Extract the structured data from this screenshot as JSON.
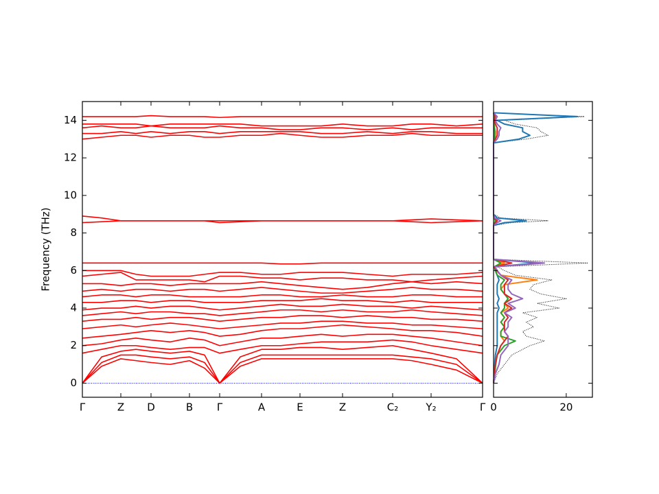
{
  "chart_data": [
    {
      "type": "line",
      "y_label": "Frequency (THz)",
      "x": [
        0,
        0.28,
        0.56,
        0.78,
        1.0,
        1.28,
        1.56,
        1.78,
        2.0,
        2.3,
        2.61,
        2.89,
        3.17,
        3.48,
        3.79,
        4.15,
        4.52,
        4.8,
        5.08,
        5.45,
        5.83
      ],
      "xlim": [
        0,
        5.83
      ],
      "xticks": [
        {
          "value": 0,
          "label": "Γ"
        },
        {
          "value": 0.56,
          "label": "Z"
        },
        {
          "value": 1.0,
          "label": "D"
        },
        {
          "value": 1.56,
          "label": "B"
        },
        {
          "value": 2.0,
          "label": "Γ"
        },
        {
          "value": 2.61,
          "label": "A"
        },
        {
          "value": 3.17,
          "label": "E"
        },
        {
          "value": 3.79,
          "label": "Z"
        },
        {
          "value": 4.52,
          "label": "C₂"
        },
        {
          "value": 5.08,
          "label": "Y₂"
        },
        {
          "value": 5.83,
          "label": "Γ"
        }
      ],
      "ylim": [
        -0.75,
        15
      ],
      "yticks": [
        0,
        2,
        4,
        6,
        8,
        10,
        12,
        14
      ],
      "series": [
        {
          "color": "#0000ff",
          "linestyle": "dotted",
          "values": [
            0,
            0,
            0,
            0,
            0,
            0,
            0,
            0,
            0,
            0,
            0,
            0,
            0,
            0,
            0,
            0,
            0,
            0,
            0,
            0,
            0
          ]
        },
        {
          "color": "#ff0000",
          "values": [
            0,
            0.9,
            1.3,
            1.2,
            1.1,
            1.0,
            1.2,
            0.8,
            0,
            0.9,
            1.3,
            1.3,
            1.3,
            1.3,
            1.3,
            1.3,
            1.3,
            1.2,
            1.0,
            0.7,
            0
          ]
        },
        {
          "color": "#ff0000",
          "values": [
            0,
            1.1,
            1.5,
            1.5,
            1.4,
            1.3,
            1.4,
            1.1,
            0,
            1.1,
            1.5,
            1.5,
            1.5,
            1.5,
            1.5,
            1.5,
            1.5,
            1.4,
            1.3,
            1.0,
            0
          ]
        },
        {
          "color": "#ff0000",
          "values": [
            0,
            1.4,
            1.7,
            1.8,
            1.7,
            1.6,
            1.7,
            1.5,
            0,
            1.4,
            1.8,
            1.8,
            1.9,
            1.9,
            1.8,
            1.9,
            2.0,
            1.8,
            1.6,
            1.3,
            0
          ]
        },
        {
          "color": "#ff0000",
          "values": [
            1.6,
            1.8,
            2.0,
            2.0,
            1.9,
            1.8,
            1.9,
            1.9,
            1.6,
            1.8,
            2.0,
            2.0,
            2.1,
            2.2,
            2.2,
            2.2,
            2.3,
            2.2,
            2.0,
            1.8,
            1.6
          ]
        },
        {
          "color": "#ff0000",
          "values": [
            2.0,
            2.1,
            2.3,
            2.4,
            2.3,
            2.2,
            2.4,
            2.3,
            2.0,
            2.2,
            2.4,
            2.4,
            2.5,
            2.6,
            2.5,
            2.6,
            2.6,
            2.5,
            2.4,
            2.2,
            2.0
          ]
        },
        {
          "color": "#ff0000",
          "values": [
            2.4,
            2.5,
            2.6,
            2.7,
            2.8,
            2.7,
            2.8,
            2.7,
            2.5,
            2.6,
            2.8,
            2.9,
            2.9,
            3.0,
            3.1,
            3.0,
            2.9,
            2.8,
            2.8,
            2.7,
            2.5
          ]
        },
        {
          "color": "#ff0000",
          "values": [
            2.9,
            3.0,
            3.1,
            3.0,
            3.1,
            3.2,
            3.1,
            3.0,
            2.9,
            3.0,
            3.1,
            3.2,
            3.2,
            3.3,
            3.3,
            3.2,
            3.2,
            3.1,
            3.1,
            3.0,
            2.9
          ]
        },
        {
          "color": "#ff0000",
          "values": [
            3.3,
            3.4,
            3.4,
            3.5,
            3.4,
            3.5,
            3.5,
            3.4,
            3.3,
            3.4,
            3.5,
            3.5,
            3.6,
            3.6,
            3.5,
            3.6,
            3.5,
            3.5,
            3.4,
            3.4,
            3.3
          ]
        },
        {
          "color": "#ff0000",
          "values": [
            3.6,
            3.7,
            3.8,
            3.7,
            3.8,
            3.8,
            3.7,
            3.7,
            3.6,
            3.7,
            3.8,
            3.9,
            3.9,
            3.8,
            3.9,
            3.8,
            3.8,
            3.9,
            3.8,
            3.7,
            3.6
          ]
        },
        {
          "color": "#ff0000",
          "values": [
            3.9,
            4.0,
            4.0,
            4.1,
            4.0,
            4.1,
            4.1,
            4.0,
            3.9,
            4.0,
            4.1,
            4.2,
            4.1,
            4.1,
            4.2,
            4.1,
            4.1,
            4.0,
            4.1,
            4.0,
            3.9
          ]
        },
        {
          "color": "#ff0000",
          "values": [
            4.3,
            4.3,
            4.4,
            4.4,
            4.3,
            4.4,
            4.4,
            4.3,
            4.3,
            4.3,
            4.4,
            4.4,
            4.4,
            4.5,
            4.4,
            4.4,
            4.3,
            4.4,
            4.3,
            4.3,
            4.3
          ]
        },
        {
          "color": "#ff0000",
          "values": [
            4.6,
            4.7,
            4.7,
            4.6,
            4.7,
            4.7,
            4.6,
            4.6,
            4.6,
            4.6,
            4.7,
            4.7,
            4.6,
            4.6,
            4.7,
            4.6,
            4.6,
            4.7,
            4.7,
            4.6,
            4.6
          ]
        },
        {
          "color": "#ff0000",
          "values": [
            4.9,
            5.0,
            4.9,
            5.0,
            5.0,
            4.9,
            5.0,
            5.0,
            4.9,
            5.0,
            5.1,
            5.0,
            4.9,
            4.8,
            4.8,
            4.9,
            5.0,
            5.1,
            5.0,
            5.0,
            4.9
          ]
        },
        {
          "color": "#ff0000",
          "values": [
            5.3,
            5.3,
            5.2,
            5.3,
            5.3,
            5.2,
            5.3,
            5.3,
            5.3,
            5.3,
            5.4,
            5.3,
            5.2,
            5.1,
            5.0,
            5.1,
            5.3,
            5.4,
            5.3,
            5.4,
            5.3
          ]
        },
        {
          "color": "#ff0000",
          "values": [
            5.7,
            5.8,
            5.9,
            5.5,
            5.5,
            5.5,
            5.5,
            5.4,
            5.7,
            5.7,
            5.6,
            5.6,
            5.5,
            5.6,
            5.6,
            5.5,
            5.5,
            5.4,
            5.5,
            5.6,
            5.7
          ]
        },
        {
          "color": "#ff0000",
          "values": [
            6.0,
            6.0,
            6.0,
            5.8,
            5.7,
            5.7,
            5.7,
            5.8,
            5.9,
            5.9,
            5.8,
            5.8,
            5.9,
            5.9,
            5.9,
            5.8,
            5.7,
            5.8,
            5.8,
            5.8,
            5.9
          ]
        },
        {
          "color": "#ff0000",
          "values": [
            6.4,
            6.4,
            6.4,
            6.4,
            6.4,
            6.4,
            6.4,
            6.4,
            6.4,
            6.4,
            6.4,
            6.35,
            6.35,
            6.4,
            6.4,
            6.4,
            6.4,
            6.4,
            6.4,
            6.4,
            6.4
          ]
        },
        {
          "color": "#ff0000",
          "values": [
            8.9,
            8.8,
            8.65,
            8.65,
            8.65,
            8.65,
            8.65,
            8.65,
            8.55,
            8.6,
            8.65,
            8.65,
            8.65,
            8.65,
            8.65,
            8.65,
            8.65,
            8.7,
            8.75,
            8.7,
            8.65
          ]
        },
        {
          "color": "#ff0000",
          "values": [
            8.55,
            8.6,
            8.65,
            8.65,
            8.65,
            8.65,
            8.65,
            8.65,
            8.65,
            8.65,
            8.65,
            8.65,
            8.65,
            8.65,
            8.65,
            8.65,
            8.65,
            8.6,
            8.55,
            8.6,
            8.65
          ]
        },
        {
          "color": "#ff0000",
          "values": [
            13.0,
            13.1,
            13.2,
            13.2,
            13.1,
            13.2,
            13.2,
            13.1,
            13.1,
            13.2,
            13.2,
            13.3,
            13.2,
            13.1,
            13.1,
            13.2,
            13.2,
            13.3,
            13.2,
            13.2,
            13.2
          ]
        },
        {
          "color": "#ff0000",
          "values": [
            13.3,
            13.3,
            13.4,
            13.3,
            13.4,
            13.3,
            13.4,
            13.4,
            13.3,
            13.4,
            13.4,
            13.4,
            13.4,
            13.3,
            13.3,
            13.4,
            13.3,
            13.4,
            13.4,
            13.3,
            13.3
          ]
        },
        {
          "color": "#ff0000",
          "values": [
            13.6,
            13.7,
            13.6,
            13.6,
            13.7,
            13.6,
            13.6,
            13.6,
            13.7,
            13.6,
            13.6,
            13.5,
            13.5,
            13.6,
            13.6,
            13.5,
            13.6,
            13.5,
            13.6,
            13.6,
            13.6
          ]
        },
        {
          "color": "#ff0000",
          "values": [
            13.8,
            13.8,
            13.8,
            13.8,
            13.7,
            13.8,
            13.8,
            13.8,
            13.8,
            13.8,
            13.7,
            13.7,
            13.7,
            13.7,
            13.8,
            13.7,
            13.7,
            13.8,
            13.8,
            13.7,
            13.8
          ]
        },
        {
          "color": "#ff0000",
          "values": [
            14.2,
            14.2,
            14.2,
            14.2,
            14.25,
            14.2,
            14.2,
            14.2,
            14.15,
            14.2,
            14.2,
            14.2,
            14.2,
            14.2,
            14.2,
            14.2,
            14.2,
            14.2,
            14.2,
            14.2,
            14.2
          ]
        }
      ]
    },
    {
      "type": "line",
      "orientation": "horizontal",
      "y": [
        0,
        0.5,
        1.0,
        1.5,
        2.0,
        2.25,
        2.5,
        2.75,
        3.0,
        3.25,
        3.5,
        3.75,
        4.0,
        4.25,
        4.5,
        4.75,
        5.0,
        5.25,
        5.5,
        5.75,
        6.0,
        6.2,
        6.4,
        6.6,
        8.4,
        8.55,
        8.65,
        8.8,
        9.0,
        12.8,
        13.0,
        13.2,
        13.4,
        13.6,
        13.8,
        14.0,
        14.2,
        14.4
      ],
      "xlim": [
        0,
        27.2
      ],
      "xticks": [
        0,
        20
      ],
      "ylim": [
        -0.75,
        15
      ],
      "yticks": [
        0,
        2,
        4,
        6,
        8,
        10,
        12,
        14
      ],
      "ytick_labels": false,
      "series": [
        {
          "color": "#000000",
          "linestyle": "dotted",
          "values": [
            0,
            1,
            3,
            5,
            10,
            14,
            9,
            8,
            11,
            9,
            12,
            8,
            18,
            12,
            20,
            13,
            10,
            11,
            16,
            6,
            3,
            1,
            26,
            0,
            0,
            5,
            15,
            2,
            0,
            0,
            9,
            15,
            13,
            12,
            6,
            3,
            25,
            0
          ]
        },
        {
          "color": "#1f77b4",
          "values": [
            0,
            0.2,
            0.3,
            0.5,
            1,
            1,
            1,
            1,
            1,
            1,
            1,
            1,
            1.5,
            1,
            1.5,
            1,
            1,
            1,
            1.5,
            1,
            0.5,
            0.3,
            12,
            0,
            0,
            3,
            9,
            1,
            0,
            0,
            7,
            10,
            8,
            8,
            3,
            1,
            23,
            0
          ]
        },
        {
          "color": "#ff7f0e",
          "values": [
            0,
            0.3,
            0.5,
            1,
            2,
            3,
            2,
            2,
            3,
            2,
            3,
            2,
            4,
            3,
            5,
            3,
            2,
            3,
            12,
            2,
            1,
            0.3,
            3,
            0,
            0,
            0.5,
            1,
            0.2,
            0,
            0,
            0.3,
            0.5,
            0.5,
            0.3,
            0.2,
            0.2,
            0.3,
            0
          ]
        },
        {
          "color": "#2ca02c",
          "values": [
            0,
            0.3,
            0.6,
            1,
            3,
            6,
            2,
            2,
            3,
            2,
            3,
            2,
            3,
            3,
            4,
            3,
            2,
            2,
            3,
            1,
            0.5,
            0.2,
            2,
            0,
            0,
            0.3,
            0.5,
            0.1,
            0,
            0,
            0.2,
            0.3,
            0.3,
            0.2,
            0.1,
            0.1,
            0.2,
            0
          ]
        },
        {
          "color": "#d62728",
          "values": [
            0,
            0.2,
            0.5,
            1,
            2,
            3,
            4,
            3,
            3,
            3,
            4,
            3,
            5,
            3,
            5,
            3,
            3,
            3,
            4,
            2,
            0.8,
            0.2,
            5,
            0,
            0,
            0.5,
            1,
            0.2,
            0,
            0,
            0.5,
            1,
            1,
            1,
            0.5,
            0.2,
            0.5,
            0
          ]
        },
        {
          "color": "#9467bd",
          "values": [
            0,
            0.5,
            1.5,
            2,
            4,
            4,
            4,
            3,
            4,
            4,
            5,
            3,
            6,
            4,
            8,
            5,
            4,
            4,
            5,
            2,
            1,
            0.4,
            14,
            0,
            0,
            1,
            2,
            0.3,
            0,
            0,
            1,
            1.5,
            1.5,
            2,
            1,
            0.5,
            1,
            0
          ]
        }
      ]
    }
  ]
}
